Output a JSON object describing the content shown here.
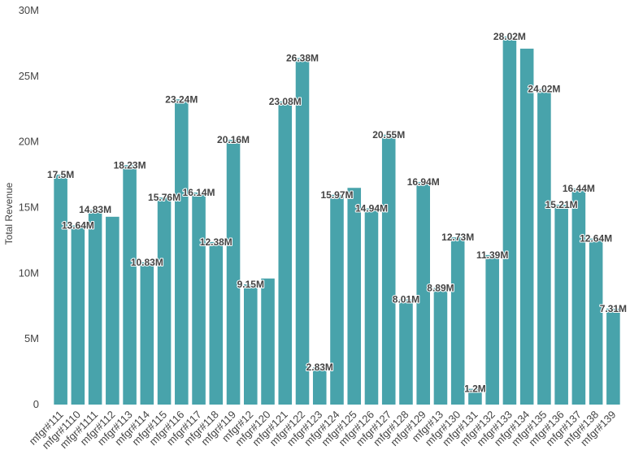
{
  "chart_data": {
    "type": "bar",
    "ylabel": "Total Revenue",
    "xlabel": "",
    "ylim": [
      0,
      30000000
    ],
    "yticks": [
      0,
      5000000,
      10000000,
      15000000,
      20000000,
      25000000,
      30000000
    ],
    "ytick_labels": [
      "0",
      "5M",
      "10M",
      "15M",
      "20M",
      "25M",
      "30M"
    ],
    "grid": false,
    "bar_color": "#48a3ab",
    "categories": [
      "mfgr#111",
      "mfgr#1110",
      "mfgr#1111",
      "mfgr#112",
      "mfgr#113",
      "mfgr#114",
      "mfgr#115",
      "mfgr#116",
      "mfgr#117",
      "mfgr#118",
      "mfgr#119",
      "mfgr#12",
      "mfgr#120",
      "mfgr#121",
      "mfgr#122",
      "mfgr#123",
      "mfgr#124",
      "mfgr#125",
      "mfgr#126",
      "mfgr#127",
      "mfgr#128",
      "mfgr#129",
      "mfgr#13",
      "mfgr#130",
      "mfgr#131",
      "mfgr#132",
      "mfgr#133",
      "mfgr#134",
      "mfgr#135",
      "mfgr#136",
      "mfgr#137",
      "mfgr#138",
      "mfgr#139"
    ],
    "values": [
      17500000,
      13640000,
      14830000,
      14300000,
      18230000,
      10830000,
      15760000,
      23240000,
      16140000,
      12380000,
      20160000,
      9150000,
      9600000,
      23080000,
      26380000,
      2830000,
      15970000,
      16500000,
      14940000,
      20550000,
      8010000,
      16940000,
      8890000,
      12730000,
      1200000,
      11390000,
      28020000,
      27100000,
      24020000,
      15210000,
      16440000,
      12640000,
      7310000
    ],
    "data_labels": [
      "17.5M",
      "13.64M",
      "14.83M",
      "",
      "18.23M",
      "10.83M",
      "15.76M",
      "23.24M",
      "16.14M",
      "12.38M",
      "20.16M",
      "9.15M",
      "",
      "23.08M",
      "26.38M",
      "2.83M",
      "15.97M",
      "",
      "14.94M",
      "20.55M",
      "8.01M",
      "16.94M",
      "8.89M",
      "12.73M",
      "1.2M",
      "11.39M",
      "28.02M",
      "",
      "24.02M",
      "15.21M",
      "16.44M",
      "12.64M",
      "7.31M"
    ]
  }
}
